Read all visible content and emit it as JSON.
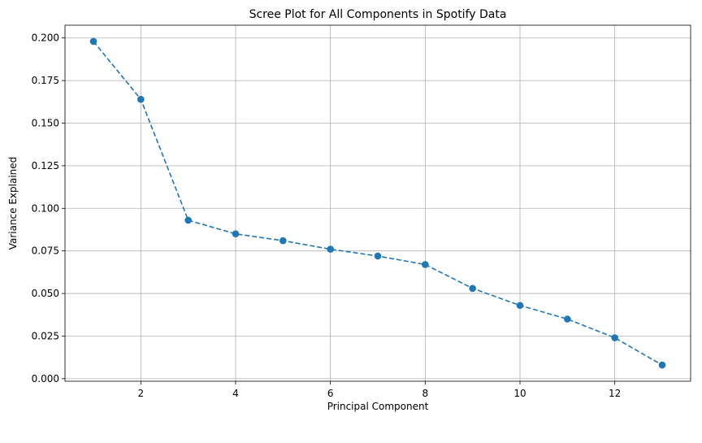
{
  "chart_data": {
    "type": "line",
    "title": "Scree Plot for All Components in Spotify Data",
    "xlabel": "Principal Component",
    "ylabel": "Variance Explained",
    "x": [
      1,
      2,
      3,
      4,
      5,
      6,
      7,
      8,
      9,
      10,
      11,
      12,
      13
    ],
    "series": [
      {
        "values": [
          0.198,
          0.164,
          0.093,
          0.085,
          0.081,
          0.076,
          0.072,
          0.067,
          0.053,
          0.043,
          0.035,
          0.024,
          0.008
        ],
        "color": "#1f77b4",
        "line_style": "dashed",
        "marker": "circle"
      }
    ],
    "xlim": [
      0.4,
      13.6
    ],
    "ylim": [
      -0.0015,
      0.2075
    ],
    "x_ticks": [
      2,
      4,
      6,
      8,
      10,
      12
    ],
    "x_tick_labels": [
      "2",
      "4",
      "6",
      "8",
      "10",
      "12"
    ],
    "y_ticks": [
      0.0,
      0.025,
      0.05,
      0.075,
      0.1,
      0.125,
      0.15,
      0.175,
      0.2
    ],
    "y_tick_labels": [
      "0.000",
      "0.025",
      "0.050",
      "0.075",
      "0.100",
      "0.125",
      "0.150",
      "0.175",
      "0.200"
    ],
    "grid": true,
    "legend": false
  }
}
